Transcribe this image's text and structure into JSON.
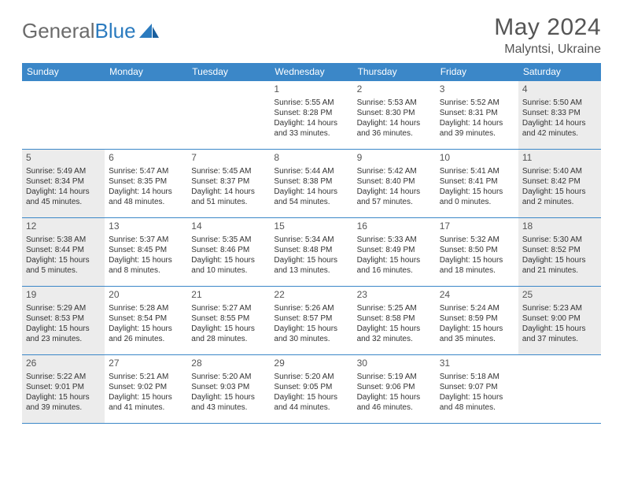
{
  "brand": {
    "part1": "General",
    "part2": "Blue"
  },
  "title": "May 2024",
  "location": "Malyntsi, Ukraine",
  "style": {
    "header_bg": "#3b87c8",
    "header_fg": "#ffffff",
    "shade_bg": "#ececec",
    "border_color": "#3b87c8",
    "text_color": "#333333",
    "title_color": "#555555"
  },
  "dow": [
    "Sunday",
    "Monday",
    "Tuesday",
    "Wednesday",
    "Thursday",
    "Friday",
    "Saturday"
  ],
  "weeks": [
    [
      {
        "n": "",
        "shade": false
      },
      {
        "n": "",
        "shade": false
      },
      {
        "n": "",
        "shade": false
      },
      {
        "n": "1",
        "shade": false,
        "sr": "5:55 AM",
        "ss": "8:28 PM",
        "dh": "14",
        "dm": "33"
      },
      {
        "n": "2",
        "shade": false,
        "sr": "5:53 AM",
        "ss": "8:30 PM",
        "dh": "14",
        "dm": "36"
      },
      {
        "n": "3",
        "shade": false,
        "sr": "5:52 AM",
        "ss": "8:31 PM",
        "dh": "14",
        "dm": "39"
      },
      {
        "n": "4",
        "shade": true,
        "sr": "5:50 AM",
        "ss": "8:33 PM",
        "dh": "14",
        "dm": "42"
      }
    ],
    [
      {
        "n": "5",
        "shade": true,
        "sr": "5:49 AM",
        "ss": "8:34 PM",
        "dh": "14",
        "dm": "45"
      },
      {
        "n": "6",
        "shade": false,
        "sr": "5:47 AM",
        "ss": "8:35 PM",
        "dh": "14",
        "dm": "48"
      },
      {
        "n": "7",
        "shade": false,
        "sr": "5:45 AM",
        "ss": "8:37 PM",
        "dh": "14",
        "dm": "51"
      },
      {
        "n": "8",
        "shade": false,
        "sr": "5:44 AM",
        "ss": "8:38 PM",
        "dh": "14",
        "dm": "54"
      },
      {
        "n": "9",
        "shade": false,
        "sr": "5:42 AM",
        "ss": "8:40 PM",
        "dh": "14",
        "dm": "57"
      },
      {
        "n": "10",
        "shade": false,
        "sr": "5:41 AM",
        "ss": "8:41 PM",
        "dh": "15",
        "dm": "0"
      },
      {
        "n": "11",
        "shade": true,
        "sr": "5:40 AM",
        "ss": "8:42 PM",
        "dh": "15",
        "dm": "2"
      }
    ],
    [
      {
        "n": "12",
        "shade": true,
        "sr": "5:38 AM",
        "ss": "8:44 PM",
        "dh": "15",
        "dm": "5"
      },
      {
        "n": "13",
        "shade": false,
        "sr": "5:37 AM",
        "ss": "8:45 PM",
        "dh": "15",
        "dm": "8"
      },
      {
        "n": "14",
        "shade": false,
        "sr": "5:35 AM",
        "ss": "8:46 PM",
        "dh": "15",
        "dm": "10"
      },
      {
        "n": "15",
        "shade": false,
        "sr": "5:34 AM",
        "ss": "8:48 PM",
        "dh": "15",
        "dm": "13"
      },
      {
        "n": "16",
        "shade": false,
        "sr": "5:33 AM",
        "ss": "8:49 PM",
        "dh": "15",
        "dm": "16"
      },
      {
        "n": "17",
        "shade": false,
        "sr": "5:32 AM",
        "ss": "8:50 PM",
        "dh": "15",
        "dm": "18"
      },
      {
        "n": "18",
        "shade": true,
        "sr": "5:30 AM",
        "ss": "8:52 PM",
        "dh": "15",
        "dm": "21"
      }
    ],
    [
      {
        "n": "19",
        "shade": true,
        "sr": "5:29 AM",
        "ss": "8:53 PM",
        "dh": "15",
        "dm": "23"
      },
      {
        "n": "20",
        "shade": false,
        "sr": "5:28 AM",
        "ss": "8:54 PM",
        "dh": "15",
        "dm": "26"
      },
      {
        "n": "21",
        "shade": false,
        "sr": "5:27 AM",
        "ss": "8:55 PM",
        "dh": "15",
        "dm": "28"
      },
      {
        "n": "22",
        "shade": false,
        "sr": "5:26 AM",
        "ss": "8:57 PM",
        "dh": "15",
        "dm": "30"
      },
      {
        "n": "23",
        "shade": false,
        "sr": "5:25 AM",
        "ss": "8:58 PM",
        "dh": "15",
        "dm": "32"
      },
      {
        "n": "24",
        "shade": false,
        "sr": "5:24 AM",
        "ss": "8:59 PM",
        "dh": "15",
        "dm": "35"
      },
      {
        "n": "25",
        "shade": true,
        "sr": "5:23 AM",
        "ss": "9:00 PM",
        "dh": "15",
        "dm": "37"
      }
    ],
    [
      {
        "n": "26",
        "shade": true,
        "sr": "5:22 AM",
        "ss": "9:01 PM",
        "dh": "15",
        "dm": "39"
      },
      {
        "n": "27",
        "shade": false,
        "sr": "5:21 AM",
        "ss": "9:02 PM",
        "dh": "15",
        "dm": "41"
      },
      {
        "n": "28",
        "shade": false,
        "sr": "5:20 AM",
        "ss": "9:03 PM",
        "dh": "15",
        "dm": "43"
      },
      {
        "n": "29",
        "shade": false,
        "sr": "5:20 AM",
        "ss": "9:05 PM",
        "dh": "15",
        "dm": "44"
      },
      {
        "n": "30",
        "shade": false,
        "sr": "5:19 AM",
        "ss": "9:06 PM",
        "dh": "15",
        "dm": "46"
      },
      {
        "n": "31",
        "shade": false,
        "sr": "5:18 AM",
        "ss": "9:07 PM",
        "dh": "15",
        "dm": "48"
      },
      {
        "n": "",
        "shade": false
      }
    ]
  ],
  "labels": {
    "sunrise": "Sunrise:",
    "sunset": "Sunset:",
    "daylight": "Daylight:",
    "hours": "hours",
    "and": "and",
    "minutes": "minutes."
  }
}
